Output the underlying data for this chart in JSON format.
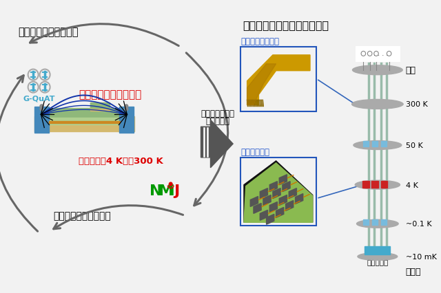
{
  "bg_color": "#f2f2f2",
  "title_left": "低温環境下の計測技術",
  "title_right": "量子コンピューターシステム",
  "center_text_red": "高周波基板材料の評価",
  "temp_range_text": "温度範囲：4 Kから300 K",
  "bottom_left_text": "高精度な材料評価技術",
  "middle_arrow_label_line1": "低温高周波部品",
  "middle_arrow_label_line2": "の高密度化",
  "flat_cable_label": "フラットケーブル",
  "circuit_label": "回路の集積化",
  "quantum_chip_label": "量子チップ",
  "room_temp_label": "室温",
  "extreme_cold_label": "極低温",
  "temp_labels": [
    "300 K",
    "50 K",
    "4 K",
    "~0.1 K",
    "~10 mK"
  ],
  "gquat_label": "G-QuAT",
  "red_color": "#dd0000",
  "blue_label_color": "#2255cc",
  "gquat_color": "#44aacc",
  "green_color": "#00aa00",
  "arrow_color": "#666666",
  "pcb_beige": "#d4b96e",
  "pcb_green1": "#8fb87a",
  "pcb_green2": "#b0d090",
  "pcb_blue": "#4488bb",
  "line_blue": "#1133aa",
  "cryostat_wire": "#99bbaa",
  "disk_gray": "#aaaaaa",
  "red_block": "#cc2222",
  "blue_block": "#55aadd",
  "cyan_chip": "#44aacc"
}
